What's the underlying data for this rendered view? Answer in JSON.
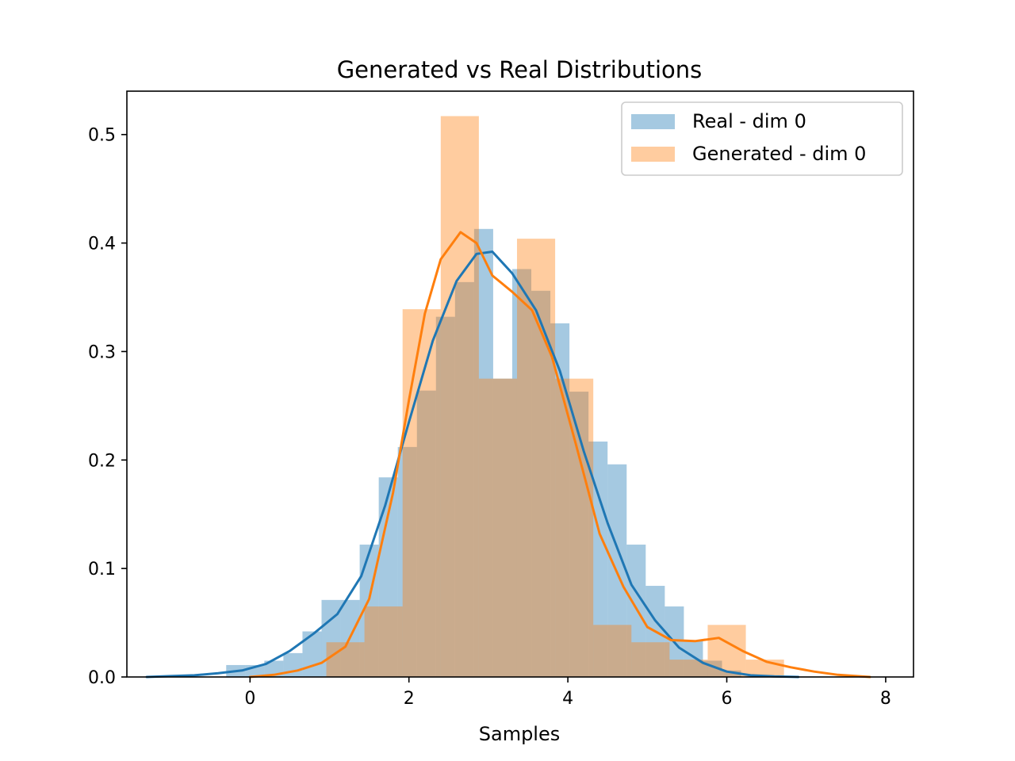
{
  "chart_data": {
    "type": "bar",
    "title": "Generated vs Real Distributions",
    "xlabel": "Samples",
    "ylabel": "",
    "xlim": [
      -1.55,
      8.35
    ],
    "ylim": [
      0,
      0.54
    ],
    "x_ticks": [
      0,
      2,
      4,
      6,
      8
    ],
    "y_ticks": [
      0.0,
      0.1,
      0.2,
      0.3,
      0.4,
      0.5
    ],
    "x_tick_labels": [
      "0",
      "2",
      "4",
      "6",
      "8"
    ],
    "y_tick_labels": [
      "0.0",
      "0.1",
      "0.2",
      "0.3",
      "0.4",
      "0.5"
    ],
    "grid": false,
    "legend_position": "top-right",
    "series": [
      {
        "name": "Real - dim 0",
        "kind": "histogram",
        "color": "#1f77b4",
        "alpha": 0.4,
        "bin_edges": [
          -0.3,
          -0.06,
          0.18,
          0.42,
          0.66,
          0.9,
          1.14,
          1.38,
          1.62,
          1.86,
          2.1,
          2.34,
          2.58,
          2.82,
          3.06,
          3.3,
          3.54,
          3.78,
          4.02,
          4.26,
          4.5,
          4.74,
          4.98,
          5.22,
          5.46,
          5.7,
          5.94,
          6.18
        ],
        "values": [
          0.011,
          0.011,
          0.015,
          0.022,
          0.042,
          0.071,
          0.071,
          0.122,
          0.184,
          0.212,
          0.264,
          0.332,
          0.364,
          0.413,
          0.275,
          0.376,
          0.356,
          0.326,
          0.263,
          0.217,
          0.196,
          0.122,
          0.084,
          0.065,
          0.034,
          0.015,
          0.006
        ]
      },
      {
        "name": "Generated - dim 0",
        "kind": "histogram",
        "color": "#ff7f0e",
        "alpha": 0.4,
        "bin_edges": [
          0.0,
          0.48,
          0.96,
          1.44,
          1.92,
          2.4,
          2.88,
          3.36,
          3.84,
          4.32,
          4.8,
          5.28,
          5.76,
          6.24,
          6.72
        ],
        "values": [
          0.0,
          0.0,
          0.032,
          0.065,
          0.339,
          0.517,
          0.275,
          0.404,
          0.275,
          0.048,
          0.032,
          0.016,
          0.048,
          0.016
        ]
      },
      {
        "name": "Real - dim 0 KDE",
        "kind": "line",
        "color": "#1f77b4",
        "x": [
          -1.3,
          -1.0,
          -0.7,
          -0.4,
          -0.1,
          0.2,
          0.5,
          0.8,
          1.1,
          1.4,
          1.7,
          2.0,
          2.3,
          2.6,
          2.85,
          3.05,
          3.3,
          3.6,
          3.9,
          4.2,
          4.5,
          4.8,
          5.1,
          5.4,
          5.7,
          6.0,
          6.3,
          6.6,
          6.9
        ],
        "y": [
          0.0,
          0.0008,
          0.0015,
          0.0035,
          0.006,
          0.012,
          0.024,
          0.04,
          0.058,
          0.093,
          0.158,
          0.235,
          0.31,
          0.365,
          0.39,
          0.392,
          0.372,
          0.338,
          0.282,
          0.208,
          0.142,
          0.085,
          0.052,
          0.027,
          0.013,
          0.005,
          0.0015,
          0.0005,
          0.0
        ]
      },
      {
        "name": "Generated - dim 0 KDE",
        "kind": "line",
        "color": "#ff7f0e",
        "x": [
          0.0,
          0.3,
          0.6,
          0.9,
          1.2,
          1.5,
          1.8,
          2.0,
          2.2,
          2.4,
          2.65,
          2.85,
          3.05,
          3.3,
          3.55,
          3.8,
          4.1,
          4.4,
          4.7,
          5.0,
          5.3,
          5.6,
          5.9,
          6.2,
          6.5,
          6.8,
          7.1,
          7.4,
          7.8
        ],
        "y": [
          0.0,
          0.002,
          0.006,
          0.013,
          0.028,
          0.072,
          0.17,
          0.255,
          0.335,
          0.385,
          0.41,
          0.4,
          0.37,
          0.355,
          0.338,
          0.295,
          0.215,
          0.132,
          0.083,
          0.046,
          0.034,
          0.033,
          0.036,
          0.024,
          0.014,
          0.009,
          0.005,
          0.002,
          0.0
        ]
      }
    ]
  }
}
